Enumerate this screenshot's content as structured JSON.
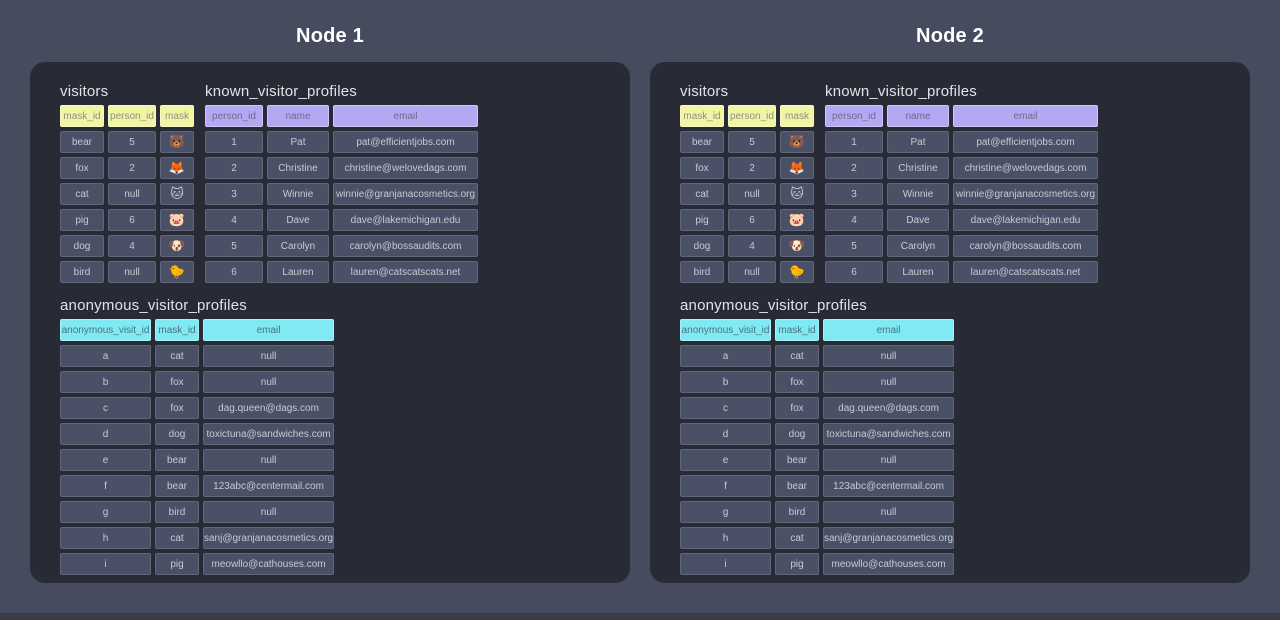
{
  "colors": {
    "page_bg": "#474B5E",
    "panel_bg": "#282A36",
    "cell_bg": "#4A5166",
    "cell_text": "#C7CAD3",
    "table_title_text": "#E2E3E8",
    "node_title_text": "#FFFFFF",
    "header_yellow_bg": "#F2F4A4",
    "header_yellow_text": "#8F9083",
    "header_purple_bg": "#B5A8F2",
    "header_purple_text": "#696B8F",
    "header_cyan_bg": "#7FE9F4",
    "header_cyan_text": "#4A737D",
    "bottom_bar": "#3A3D49"
  },
  "nodes": [
    {
      "title": "Node 1",
      "visitors": {
        "title": "visitors",
        "columns": [
          "mask_id",
          "person_id",
          "mask"
        ],
        "rows": [
          [
            "bear",
            "5",
            "🐻"
          ],
          [
            "fox",
            "2",
            "🦊"
          ],
          [
            "cat",
            "null",
            "🐱"
          ],
          [
            "pig",
            "6",
            "🐷"
          ],
          [
            "dog",
            "4",
            "🐶"
          ],
          [
            "bird",
            "null",
            "🐤"
          ]
        ]
      },
      "known": {
        "title": "known_visitor_profiles",
        "columns": [
          "person_id",
          "name",
          "email"
        ],
        "rows": [
          [
            "1",
            "Pat",
            "pat@efficientjobs.com"
          ],
          [
            "2",
            "Christine",
            "christine@welovedags.com"
          ],
          [
            "3",
            "Winnie",
            "winnie@granjanacosmetics.org"
          ],
          [
            "4",
            "Dave",
            "dave@lakemichigan.edu"
          ],
          [
            "5",
            "Carolyn",
            "carolyn@bossaudits.com"
          ],
          [
            "6",
            "Lauren",
            "lauren@catscatscats.net"
          ]
        ]
      },
      "anonymous": {
        "title": "anonymous_visitor_profiles",
        "columns": [
          "anonymous_visit_id",
          "mask_id",
          "email"
        ],
        "rows": [
          [
            "a",
            "cat",
            "null"
          ],
          [
            "b",
            "fox",
            "null"
          ],
          [
            "c",
            "fox",
            "dag.queen@dags.com"
          ],
          [
            "d",
            "dog",
            "toxictuna@sandwiches.com"
          ],
          [
            "e",
            "bear",
            "null"
          ],
          [
            "f",
            "bear",
            "123abc@centermail.com"
          ],
          [
            "g",
            "bird",
            "null"
          ],
          [
            "h",
            "cat",
            "sanj@granjanacosmetics.org"
          ],
          [
            "i",
            "pig",
            "meowllo@cathouses.com"
          ]
        ]
      }
    },
    {
      "title": "Node 2",
      "visitors": {
        "title": "visitors",
        "columns": [
          "mask_id",
          "person_id",
          "mask"
        ],
        "rows": [
          [
            "bear",
            "5",
            "🐻"
          ],
          [
            "fox",
            "2",
            "🦊"
          ],
          [
            "cat",
            "null",
            "🐱"
          ],
          [
            "pig",
            "6",
            "🐷"
          ],
          [
            "dog",
            "4",
            "🐶"
          ],
          [
            "bird",
            "null",
            "🐤"
          ]
        ]
      },
      "known": {
        "title": "known_visitor_profiles",
        "columns": [
          "person_id",
          "name",
          "email"
        ],
        "rows": [
          [
            "1",
            "Pat",
            "pat@efficientjobs.com"
          ],
          [
            "2",
            "Christine",
            "christine@welovedags.com"
          ],
          [
            "3",
            "Winnie",
            "winnie@granjanacosmetics.org"
          ],
          [
            "4",
            "Dave",
            "dave@lakemichigan.edu"
          ],
          [
            "5",
            "Carolyn",
            "carolyn@bossaudits.com"
          ],
          [
            "6",
            "Lauren",
            "lauren@catscatscats.net"
          ]
        ]
      },
      "anonymous": {
        "title": "anonymous_visitor_profiles",
        "columns": [
          "anonymous_visit_id",
          "mask_id",
          "email"
        ],
        "rows": [
          [
            "a",
            "cat",
            "null"
          ],
          [
            "b",
            "fox",
            "null"
          ],
          [
            "c",
            "fox",
            "dag.queen@dags.com"
          ],
          [
            "d",
            "dog",
            "toxictuna@sandwiches.com"
          ],
          [
            "e",
            "bear",
            "null"
          ],
          [
            "f",
            "bear",
            "123abc@centermail.com"
          ],
          [
            "g",
            "bird",
            "null"
          ],
          [
            "h",
            "cat",
            "sanj@granjanacosmetics.org"
          ],
          [
            "i",
            "pig",
            "meowllo@cathouses.com"
          ]
        ]
      }
    }
  ]
}
